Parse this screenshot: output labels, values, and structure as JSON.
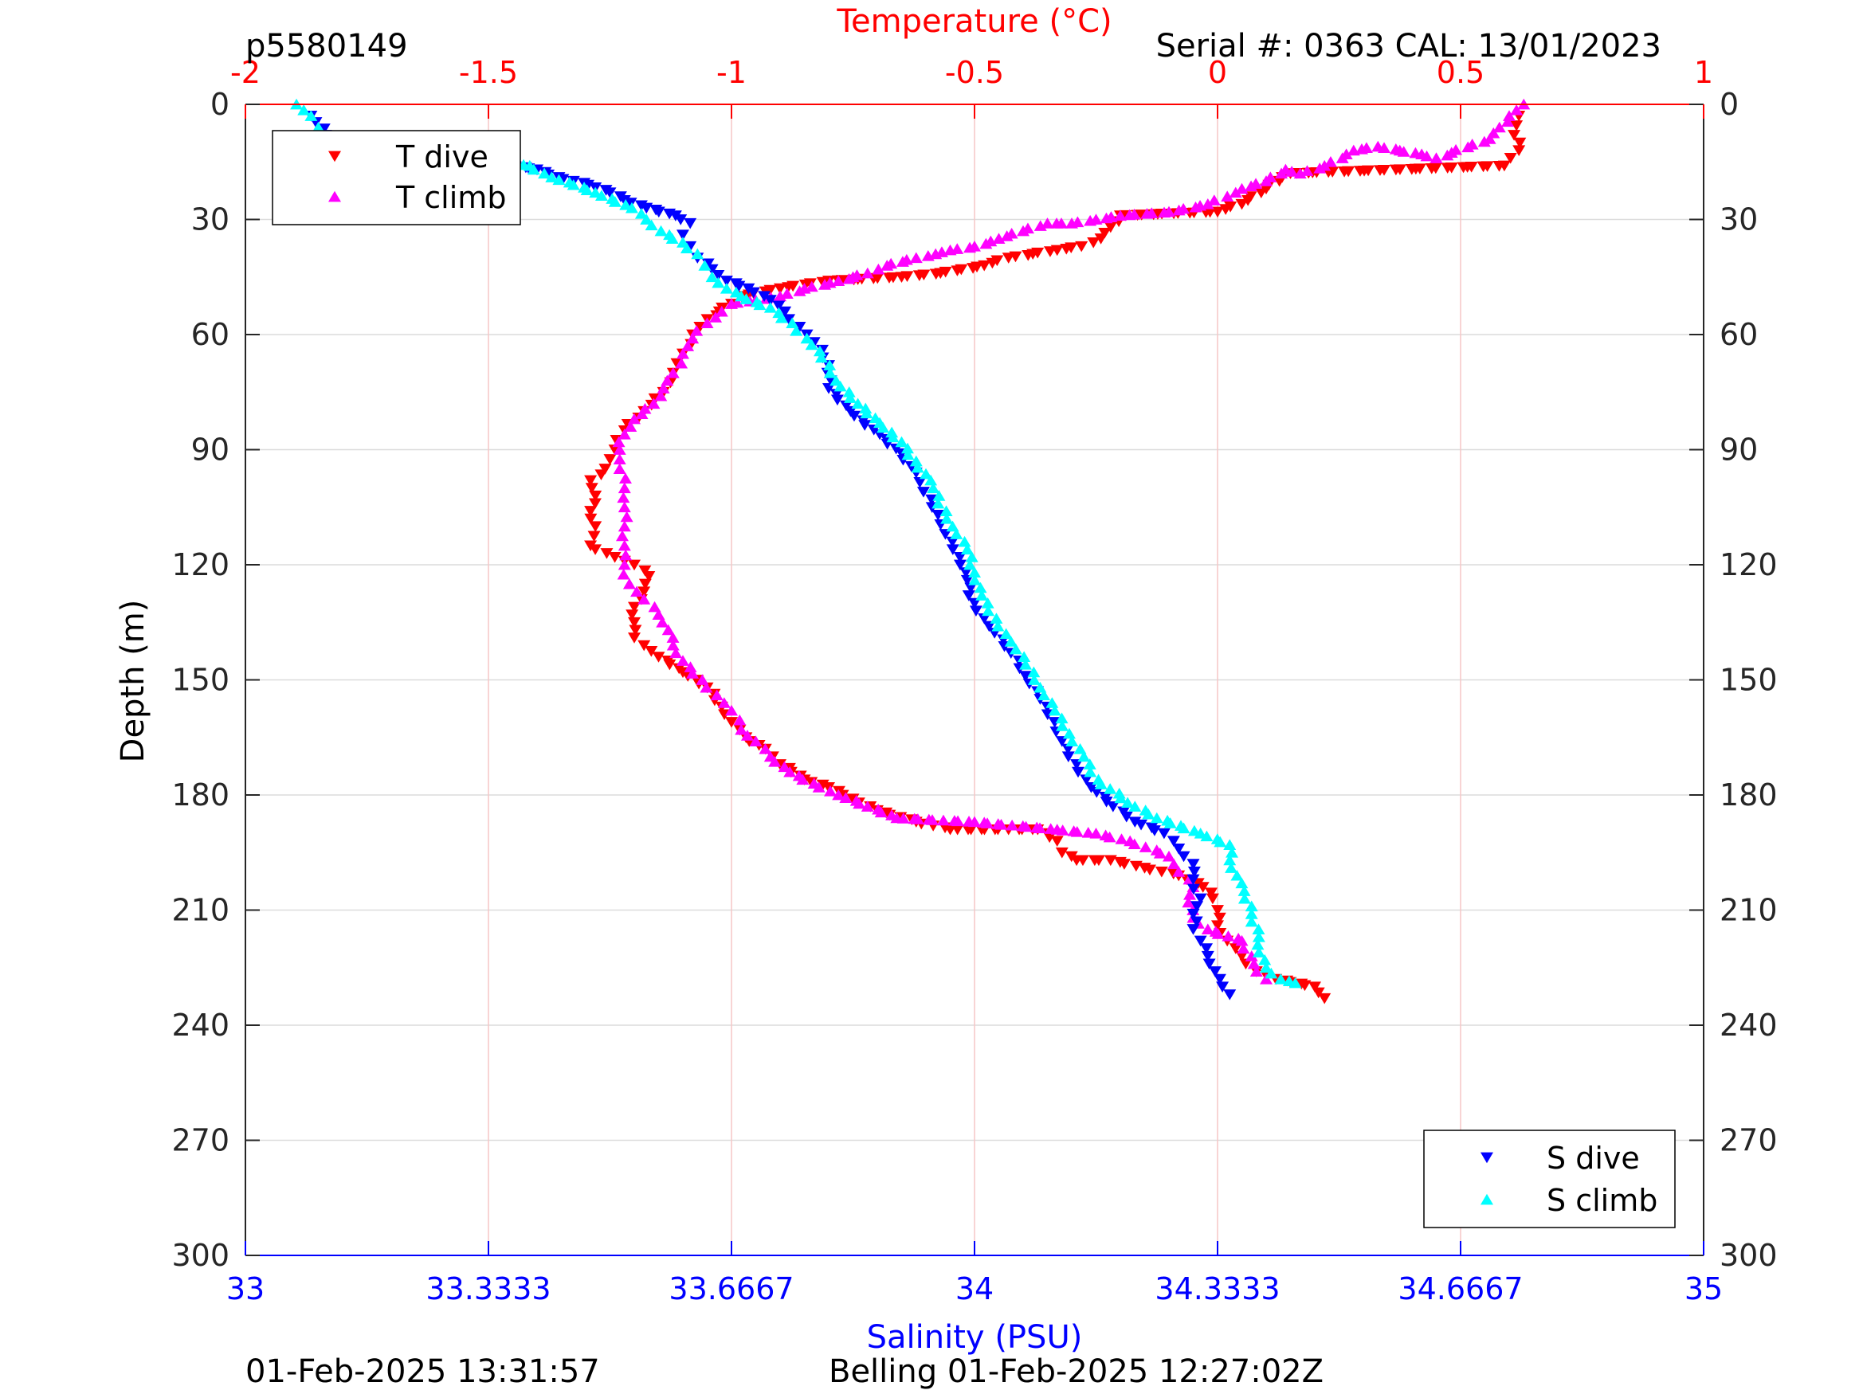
{
  "header": {
    "left_title": "p5580149",
    "right_title": "Serial #: 0363  CAL: 13/01/2023"
  },
  "footer": {
    "left": "01-Feb-2025 13:31:57",
    "center": "Belling 01-Feb-2025 12:27:02Z"
  },
  "colors": {
    "temperature_axis": "#ff0000",
    "salinity_axis": "#0000ff",
    "t_dive": "#ff0000",
    "t_climb": "#ff00ff",
    "s_dive": "#0000ff",
    "s_climb": "#00ffff"
  },
  "chart_data": {
    "type": "scatter",
    "y_axis": {
      "label": "Depth (m)",
      "range": [
        0,
        300
      ],
      "reversed": true,
      "ticks": [
        "0",
        "30",
        "60",
        "90",
        "120",
        "150",
        "180",
        "210",
        "240",
        "270",
        "300"
      ]
    },
    "x_axis_top": {
      "label": "Temperature (°C)",
      "range": [
        -2,
        1
      ],
      "ticks": [
        "-2",
        "-1.5",
        "-1",
        "-0.5",
        "0",
        "0.5",
        "1"
      ]
    },
    "x_axis_bottom": {
      "label": "Salinity (PSU)",
      "range": [
        33,
        35
      ],
      "ticks": [
        "33",
        "33.3333",
        "33.6667",
        "34",
        "34.3333",
        "34.6667",
        "35"
      ]
    },
    "grid": true,
    "legends": [
      {
        "placement": "top-left",
        "entries": [
          {
            "name": "T dive",
            "marker": "down-triangle",
            "color": "#ff0000"
          },
          {
            "name": "T climb",
            "marker": "up-triangle",
            "color": "#ff00ff"
          }
        ]
      },
      {
        "placement": "bottom-right",
        "entries": [
          {
            "name": "S dive",
            "marker": "down-triangle",
            "color": "#0000ff"
          },
          {
            "name": "S climb",
            "marker": "up-triangle",
            "color": "#00ffff"
          }
        ]
      }
    ],
    "series": [
      {
        "name": "T dive",
        "axis": "temperature",
        "marker": "down-triangle",
        "color": "#ff0000",
        "points": [
          [
            0.62,
            3
          ],
          [
            0.61,
            8
          ],
          [
            0.62,
            12
          ],
          [
            0.59,
            16
          ],
          [
            0.15,
            18
          ],
          [
            0.1,
            22
          ],
          [
            0.05,
            26
          ],
          [
            0.0,
            28
          ],
          [
            -0.2,
            29
          ],
          [
            -0.22,
            32
          ],
          [
            -0.24,
            35
          ],
          [
            -0.28,
            37
          ],
          [
            -0.33,
            38
          ],
          [
            -0.43,
            40
          ],
          [
            -0.48,
            42
          ],
          [
            -0.57,
            44
          ],
          [
            -0.65,
            45
          ],
          [
            -0.8,
            46
          ],
          [
            -0.9,
            48
          ],
          [
            -0.98,
            50
          ],
          [
            -1.0,
            52
          ],
          [
            -1.05,
            56
          ],
          [
            -1.08,
            60
          ],
          [
            -1.1,
            65
          ],
          [
            -1.12,
            70
          ],
          [
            -1.14,
            75
          ],
          [
            -1.18,
            80
          ],
          [
            -1.22,
            85
          ],
          [
            -1.24,
            90
          ],
          [
            -1.26,
            95
          ],
          [
            -1.29,
            98
          ],
          [
            -1.28,
            102
          ],
          [
            -1.29,
            106
          ],
          [
            -1.28,
            110
          ],
          [
            -1.29,
            115
          ],
          [
            -1.24,
            118
          ],
          [
            -1.2,
            120
          ],
          [
            -1.17,
            123
          ],
          [
            -1.18,
            127
          ],
          [
            -1.2,
            131
          ],
          [
            -1.2,
            135
          ],
          [
            -1.2,
            139
          ],
          [
            -1.18,
            141
          ],
          [
            -1.15,
            144
          ],
          [
            -1.1,
            148
          ],
          [
            -1.05,
            152
          ],
          [
            -1.02,
            157
          ],
          [
            -1.0,
            161
          ],
          [
            -0.97,
            165
          ],
          [
            -0.93,
            168
          ],
          [
            -0.9,
            172
          ],
          [
            -0.85,
            176
          ],
          [
            -0.8,
            178
          ],
          [
            -0.75,
            181
          ],
          [
            -0.7,
            184
          ],
          [
            -0.62,
            187
          ],
          [
            -0.55,
            189
          ],
          [
            -0.37,
            189
          ],
          [
            -0.33,
            192
          ],
          [
            -0.32,
            195
          ],
          [
            -0.29,
            197
          ],
          [
            -0.22,
            197
          ],
          [
            -0.15,
            199
          ],
          [
            -0.08,
            201
          ],
          [
            -0.03,
            204
          ],
          [
            -0.01,
            207
          ],
          [
            0.0,
            210
          ],
          [
            0.0,
            214
          ],
          [
            0.02,
            218
          ],
          [
            0.05,
            222
          ],
          [
            0.08,
            226
          ],
          [
            0.12,
            228
          ],
          [
            0.2,
            230
          ],
          [
            0.22,
            233
          ]
        ]
      },
      {
        "name": "T climb",
        "axis": "temperature",
        "marker": "up-triangle",
        "color": "#ff00ff",
        "points": [
          [
            0.63,
            0
          ],
          [
            0.6,
            3
          ],
          [
            0.58,
            6
          ],
          [
            0.56,
            9
          ],
          [
            0.45,
            14
          ],
          [
            0.42,
            13
          ],
          [
            0.33,
            11
          ],
          [
            0.28,
            12
          ],
          [
            0.22,
            16
          ],
          [
            0.17,
            18
          ],
          [
            0.14,
            17
          ],
          [
            0.1,
            20
          ],
          [
            0.05,
            22
          ],
          [
            0.02,
            24
          ],
          [
            -0.02,
            26
          ],
          [
            -0.1,
            28
          ],
          [
            -0.2,
            29
          ],
          [
            -0.25,
            30
          ],
          [
            -0.3,
            31
          ],
          [
            -0.35,
            31
          ],
          [
            -0.4,
            33
          ],
          [
            -0.45,
            35
          ],
          [
            -0.5,
            37
          ],
          [
            -0.55,
            38
          ],
          [
            -0.58,
            39
          ],
          [
            -0.62,
            40
          ],
          [
            -0.68,
            42
          ],
          [
            -0.72,
            44
          ],
          [
            -0.78,
            46
          ],
          [
            -0.85,
            48
          ],
          [
            -0.9,
            50
          ],
          [
            -0.95,
            51
          ],
          [
            -1.0,
            52
          ],
          [
            -1.02,
            54
          ],
          [
            -1.05,
            57
          ],
          [
            -1.08,
            61
          ],
          [
            -1.1,
            65
          ],
          [
            -1.12,
            70
          ],
          [
            -1.14,
            74
          ],
          [
            -1.16,
            78
          ],
          [
            -1.2,
            82
          ],
          [
            -1.22,
            86
          ],
          [
            -1.23,
            90
          ],
          [
            -1.23,
            95
          ],
          [
            -1.22,
            100
          ],
          [
            -1.22,
            105
          ],
          [
            -1.22,
            110
          ],
          [
            -1.22,
            115
          ],
          [
            -1.22,
            120
          ],
          [
            -1.21,
            125
          ],
          [
            -1.18,
            129
          ],
          [
            -1.15,
            133
          ],
          [
            -1.13,
            137
          ],
          [
            -1.12,
            141
          ],
          [
            -1.1,
            145
          ],
          [
            -1.06,
            150
          ],
          [
            -1.03,
            154
          ],
          [
            -1.0,
            158
          ],
          [
            -0.98,
            163
          ],
          [
            -0.95,
            166
          ],
          [
            -0.92,
            170
          ],
          [
            -0.88,
            174
          ],
          [
            -0.83,
            177
          ],
          [
            -0.78,
            180
          ],
          [
            -0.72,
            183
          ],
          [
            -0.66,
            186
          ],
          [
            -0.5,
            187
          ],
          [
            -0.33,
            189
          ],
          [
            -0.25,
            190
          ],
          [
            -0.18,
            192
          ],
          [
            -0.1,
            196
          ],
          [
            -0.08,
            200
          ],
          [
            -0.05,
            204
          ],
          [
            -0.06,
            208
          ],
          [
            -0.05,
            212
          ],
          [
            -0.02,
            215
          ],
          [
            0.05,
            218
          ],
          [
            0.07,
            222
          ],
          [
            0.08,
            226
          ],
          [
            0.1,
            228
          ]
        ]
      },
      {
        "name": "S dive",
        "axis": "salinity",
        "marker": "down-triangle",
        "color": "#0000ff",
        "points": [
          [
            33.09,
            3
          ],
          [
            33.11,
            8
          ],
          [
            33.12,
            11
          ],
          [
            33.23,
            14
          ],
          [
            33.33,
            15
          ],
          [
            33.4,
            17
          ],
          [
            33.43,
            19
          ],
          [
            33.47,
            21
          ],
          [
            33.5,
            23
          ],
          [
            33.52,
            25
          ],
          [
            33.55,
            27
          ],
          [
            33.59,
            29
          ],
          [
            33.61,
            31
          ],
          [
            33.6,
            34
          ],
          [
            33.61,
            37
          ],
          [
            33.62,
            40
          ],
          [
            33.64,
            43
          ],
          [
            33.66,
            46
          ],
          [
            33.69,
            48
          ],
          [
            33.72,
            51
          ],
          [
            33.74,
            54
          ],
          [
            33.76,
            58
          ],
          [
            33.78,
            62
          ],
          [
            33.8,
            68
          ],
          [
            33.8,
            74
          ],
          [
            33.83,
            80
          ],
          [
            33.87,
            86
          ],
          [
            33.9,
            91
          ],
          [
            33.92,
            96
          ],
          [
            33.93,
            101
          ],
          [
            33.95,
            107
          ],
          [
            33.96,
            112
          ],
          [
            33.98,
            118
          ],
          [
            33.99,
            124
          ],
          [
            34.0,
            130
          ],
          [
            34.02,
            136
          ],
          [
            34.05,
            143
          ],
          [
            34.07,
            149
          ],
          [
            34.09,
            155
          ],
          [
            34.11,
            161
          ],
          [
            34.12,
            166
          ],
          [
            34.14,
            172
          ],
          [
            34.16,
            178
          ],
          [
            34.19,
            183
          ],
          [
            34.22,
            187
          ],
          [
            34.26,
            190
          ],
          [
            34.28,
            194
          ],
          [
            34.3,
            198
          ],
          [
            34.3,
            202
          ],
          [
            34.31,
            207
          ],
          [
            34.3,
            211
          ],
          [
            34.3,
            215
          ],
          [
            34.31,
            218
          ],
          [
            34.32,
            222
          ],
          [
            34.33,
            226
          ],
          [
            34.34,
            230
          ],
          [
            34.35,
            232
          ]
        ]
      },
      {
        "name": "S climb",
        "axis": "salinity",
        "marker": "up-triangle",
        "color": "#00ffff",
        "points": [
          [
            33.07,
            0
          ],
          [
            33.09,
            3
          ],
          [
            33.1,
            6
          ],
          [
            33.11,
            9
          ],
          [
            33.23,
            11
          ],
          [
            33.3,
            14
          ],
          [
            33.39,
            16
          ],
          [
            33.42,
            19
          ],
          [
            33.45,
            21
          ],
          [
            33.48,
            23
          ],
          [
            33.53,
            27
          ],
          [
            33.55,
            30
          ],
          [
            33.57,
            33
          ],
          [
            33.6,
            36
          ],
          [
            33.62,
            39
          ],
          [
            33.63,
            42
          ],
          [
            33.64,
            45
          ],
          [
            33.66,
            48
          ],
          [
            33.68,
            50
          ],
          [
            33.72,
            53
          ],
          [
            33.75,
            57
          ],
          [
            33.77,
            61
          ],
          [
            33.79,
            66
          ],
          [
            33.81,
            72
          ],
          [
            33.84,
            78
          ],
          [
            33.87,
            83
          ],
          [
            33.9,
            88
          ],
          [
            33.92,
            93
          ],
          [
            33.94,
            98
          ],
          [
            33.95,
            104
          ],
          [
            33.97,
            110
          ],
          [
            33.99,
            116
          ],
          [
            34.0,
            122
          ],
          [
            34.01,
            128
          ],
          [
            34.03,
            134
          ],
          [
            34.05,
            140
          ],
          [
            34.07,
            146
          ],
          [
            34.09,
            152
          ],
          [
            34.11,
            158
          ],
          [
            34.13,
            164
          ],
          [
            34.15,
            170
          ],
          [
            34.17,
            176
          ],
          [
            34.21,
            182
          ],
          [
            34.25,
            186
          ],
          [
            34.31,
            190
          ],
          [
            34.35,
            193
          ],
          [
            34.35,
            197
          ],
          [
            34.36,
            201
          ],
          [
            34.37,
            205
          ],
          [
            34.38,
            209
          ],
          [
            34.38,
            213
          ],
          [
            34.39,
            217
          ],
          [
            34.39,
            221
          ],
          [
            34.4,
            225
          ],
          [
            34.42,
            228
          ],
          [
            34.44,
            229
          ]
        ]
      }
    ]
  }
}
